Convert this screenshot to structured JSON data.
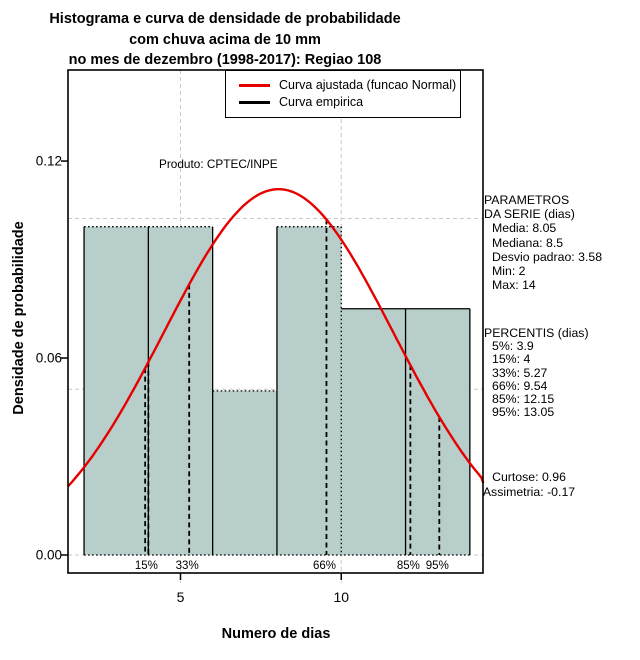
{
  "title": {
    "line1": "Histograma e curva de densidade de probabilidade",
    "line2": "com chuva acima de 10 mm",
    "line3": "no mes de dezembro (1998-2017): Regiao 108"
  },
  "legend": {
    "fitted_label": "Curva ajustada (funcao Normal)",
    "fitted_color": "#e60000",
    "empirical_label": "Curva empirica",
    "empirical_color": "#000000"
  },
  "watermark": "Produto: CPTEC/INPE",
  "axes": {
    "x_label": "Numero de dias",
    "y_label": "Densidade de probabilidade",
    "x_ticks": [
      "5",
      "10"
    ],
    "y_ticks": [
      "0.00",
      "0.06",
      "0.12"
    ]
  },
  "side_panel": {
    "params_title1": "PARAMETROS",
    "params_title2": "DA SERIE (dias)",
    "params": [
      "Media: 8.05",
      "Mediana: 8.5",
      "Desvio padrao: 3.58",
      "Min: 2",
      "Max: 14"
    ],
    "percentis_title": "PERCENTIS (dias)",
    "percentis": [
      "5%: 3.9",
      "15%: 4",
      "33%: 5.27",
      "66%: 9.54",
      "85%: 12.15",
      "95%: 13.05"
    ],
    "curtose": "Curtose: 0.96",
    "assimetria": "Assimetria: -0.17"
  },
  "chart_data": {
    "type": "histogram+density",
    "title": "Histograma e curva de densidade de probabilidade com chuva acima de 10 mm no mes de dezembro (1998-2017): Regiao 108",
    "xlabel": "Numero de dias",
    "ylabel": "Densidade de probabilidade",
    "xlim": [
      1.52,
      14.48
    ],
    "ylim": [
      0,
      0.147
    ],
    "x_tick_values": [
      5,
      10
    ],
    "y_tick_values": [
      0,
      0.06,
      0.12
    ],
    "grid": {
      "h_values": [
        0,
        0.0505,
        0.1025
      ],
      "v_values": [
        5,
        10
      ]
    },
    "bins": [
      {
        "x0": 2,
        "x1": 4,
        "density": 0.1,
        "top_style": "dotted"
      },
      {
        "x0": 4,
        "x1": 6,
        "density": 0.1,
        "top_style": "dotted"
      },
      {
        "x0": 6,
        "x1": 8,
        "density": 0.05,
        "top_style": "dotted"
      },
      {
        "x0": 8,
        "x1": 10,
        "density": 0.1,
        "top_style": "dotted"
      },
      {
        "x0": 10,
        "x1": 12,
        "density": 0.075,
        "top_style": "solid"
      },
      {
        "x0": 12,
        "x1": 14,
        "density": 0.075,
        "top_style": "solid"
      }
    ],
    "dotted_boundaries": [
      10
    ],
    "fitted_normal": {
      "mean": 8.05,
      "sd": 3.58,
      "peak_density": 0.1114
    },
    "series_stats": {
      "media": 8.05,
      "mediana": 8.5,
      "desvio_padrao": 3.58,
      "min": 2,
      "max": 14,
      "curtose": 0.96,
      "assimetria": -0.17
    },
    "percentile_lines": [
      {
        "pct": "5%",
        "x": 3.9,
        "show_label": false
      },
      {
        "pct": "15%",
        "x": 4,
        "show_label": true
      },
      {
        "pct": "33%",
        "x": 5.27,
        "show_label": true
      },
      {
        "pct": "66%",
        "x": 9.54,
        "show_label": true
      },
      {
        "pct": "85%",
        "x": 12.15,
        "show_label": true
      },
      {
        "pct": "95%",
        "x": 13.05,
        "show_label": true
      }
    ],
    "colors": {
      "bar_fill": "#b8ceca",
      "curve": "#e60000",
      "grid": "#c9c9c9",
      "percentile": "#000000"
    },
    "legend_position": "top"
  }
}
